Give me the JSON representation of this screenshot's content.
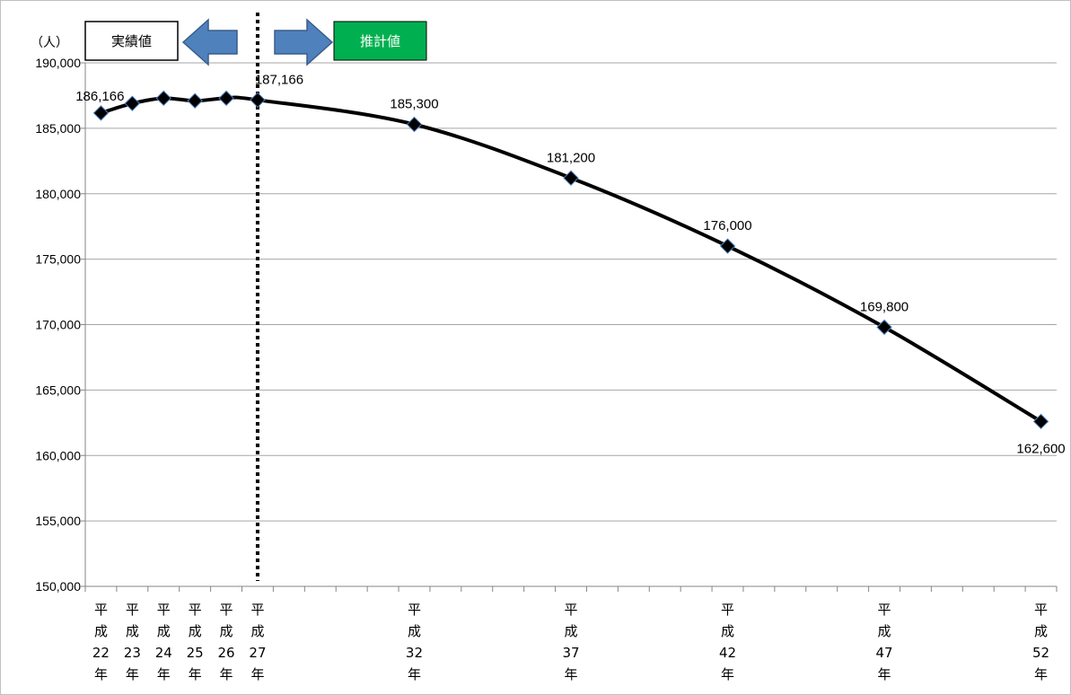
{
  "chart_data": {
    "type": "line",
    "y_unit": "（人）",
    "ylim": [
      150000,
      190000
    ],
    "y_ticks": [
      "150,000",
      "155,000",
      "160,000",
      "165,000",
      "170,000",
      "175,000",
      "180,000",
      "185,000",
      "190,000"
    ],
    "y_tick_values": [
      150000,
      155000,
      160000,
      165000,
      170000,
      175000,
      180000,
      185000,
      190000
    ],
    "categories": [
      [
        "平",
        "成",
        "22",
        "年"
      ],
      [
        "平",
        "成",
        "23",
        "年"
      ],
      [
        "平",
        "成",
        "24",
        "年"
      ],
      [
        "平",
        "成",
        "25",
        "年"
      ],
      [
        "平",
        "成",
        "26",
        "年"
      ],
      [
        "平",
        "成",
        "27",
        "年"
      ],
      [
        "平",
        "成",
        "32",
        "年"
      ],
      [
        "平",
        "成",
        "37",
        "年"
      ],
      [
        "平",
        "成",
        "42",
        "年"
      ],
      [
        "平",
        "成",
        "47",
        "年"
      ],
      [
        "平",
        "成",
        "52",
        "年"
      ]
    ],
    "x_years": [
      22,
      23,
      24,
      25,
      26,
      27,
      32,
      37,
      42,
      47,
      52
    ],
    "values": [
      186166,
      186900,
      187300,
      187100,
      187300,
      187166,
      185300,
      181200,
      176000,
      169800,
      162600
    ],
    "data_labels": [
      "186,166",
      "",
      "",
      "",
      "",
      "187,166",
      "185,300",
      "181,200",
      "176,000",
      "169,800",
      "162,600"
    ],
    "divider_year": 27,
    "grid": true,
    "legend": {
      "actual_label": "実績値",
      "forecast_label": "推計値",
      "forecast_color": "#00b050",
      "arrow_color": "#4f81bd"
    },
    "line_color": "#000000",
    "marker_color": "#000000"
  }
}
